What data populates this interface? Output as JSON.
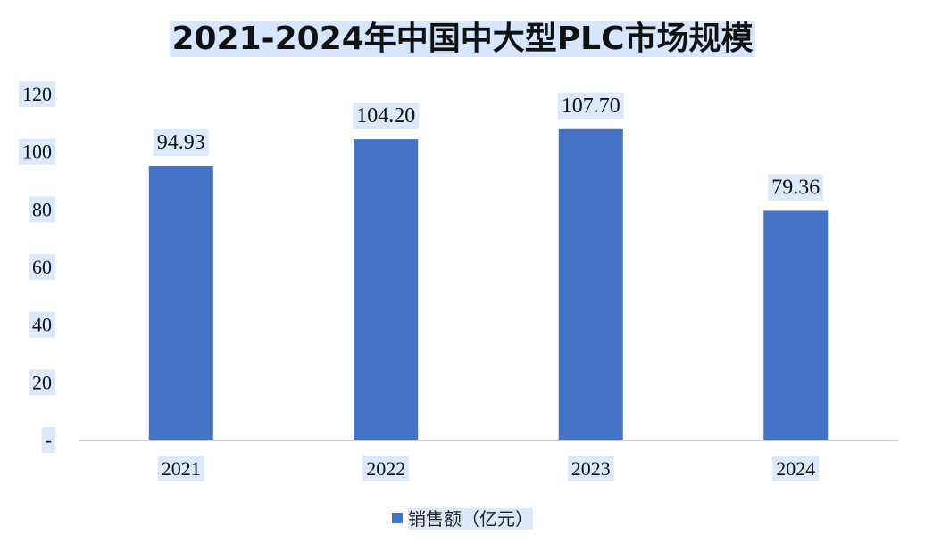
{
  "chart_data": {
    "type": "bar",
    "title": "2021-2024年中国中大型PLC市场规模",
    "categories": [
      "2021",
      "2022",
      "2023",
      "2024"
    ],
    "series": [
      {
        "name": "销售额（亿元）",
        "values": [
          94.93,
          104.2,
          107.7,
          79.36
        ]
      }
    ],
    "data_labels": [
      "94.93",
      "104.20",
      "107.70",
      "79.36"
    ],
    "yticks": [
      "-",
      "20",
      "40",
      "60",
      "80",
      "100",
      "120"
    ],
    "ylim": [
      0,
      120
    ],
    "grid": false,
    "legend_position": "bottom",
    "colors": {
      "bar": "#4472c4",
      "axis": "#d0d0d0",
      "label_bg": "#dbe9fb"
    }
  }
}
